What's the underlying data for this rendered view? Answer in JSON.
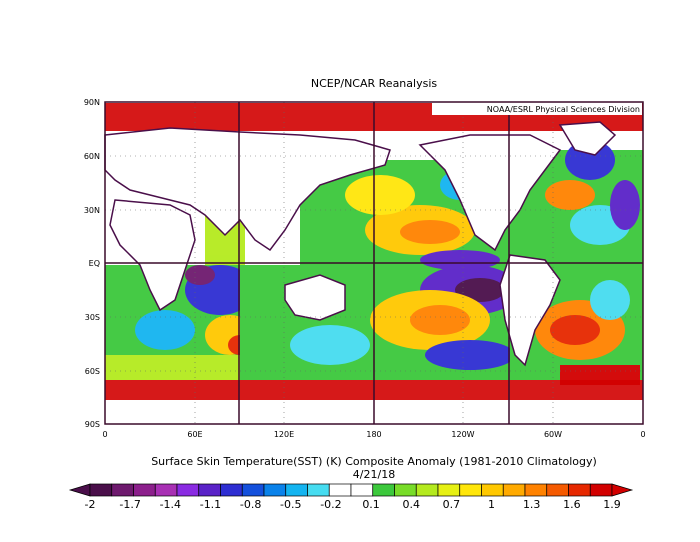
{
  "title": "NCEP/NCAR Reanalysis",
  "credit": "NOAA/ESRL Physical Sciences Division",
  "caption_line1": "Surface Skin Temperature(SST) (K) Composite Anomaly (1981-2010 Climatology)",
  "caption_line2": "4/21/18",
  "lat_labels": [
    "90N",
    "60N",
    "30N",
    "EQ",
    "30S",
    "60S",
    "90S"
  ],
  "lon_labels": [
    "0",
    "60E",
    "120E",
    "180",
    "120W",
    "60W",
    "0"
  ],
  "colorbar": {
    "labels": [
      "-2",
      "-1.7",
      "-1.4",
      "-1.1",
      "-0.8",
      "-0.5",
      "-0.2",
      "0.1",
      "0.4",
      "0.7",
      "1",
      "1.3",
      "1.6",
      "1.9"
    ],
    "colors": [
      "#4a0f4a",
      "#6e1a6e",
      "#8c1f8c",
      "#a830b4",
      "#8a2be2",
      "#5a22c8",
      "#2e2ed2",
      "#1450dc",
      "#0a82ea",
      "#14b4f0",
      "#46dcf0",
      "#ffffff",
      "#ffffff",
      "#3cc83c",
      "#78dc28",
      "#b4ea1e",
      "#e6f014",
      "#ffe60a",
      "#ffc800",
      "#ffaa00",
      "#ff8200",
      "#f55a00",
      "#e62800",
      "#d20000"
    ]
  }
}
